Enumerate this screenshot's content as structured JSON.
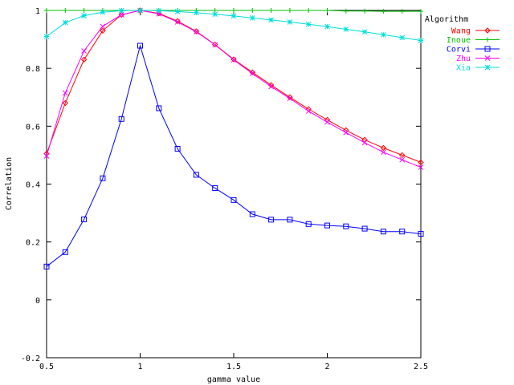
{
  "chart_data": {
    "type": "line",
    "xlabel": "gamma value",
    "ylabel": "Correlation",
    "xlim": [
      0.5,
      2.5
    ],
    "ylim": [
      -0.2,
      1.0
    ],
    "grid": false,
    "x_ticks": [
      {
        "value": 0.5,
        "label": "0.5"
      },
      {
        "value": 1.0,
        "label": "1"
      },
      {
        "value": 1.5,
        "label": "1.5"
      },
      {
        "value": 2.0,
        "label": "2"
      },
      {
        "value": 2.5,
        "label": "2.5"
      }
    ],
    "y_ticks": [
      {
        "value": -0.2,
        "label": "-0.2"
      },
      {
        "value": 0.0,
        "label": "0"
      },
      {
        "value": 0.2,
        "label": "0.2"
      },
      {
        "value": 0.4,
        "label": "0.4"
      },
      {
        "value": 0.6,
        "label": "0.6"
      },
      {
        "value": 0.8,
        "label": "0.8"
      },
      {
        "value": 1.0,
        "label": "1"
      }
    ],
    "legend_title": "Algorithm",
    "legend_position": "top-right",
    "x": [
      0.5,
      0.6,
      0.7,
      0.8,
      0.9,
      1.0,
      1.1,
      1.2,
      1.3,
      1.4,
      1.5,
      1.6,
      1.7,
      1.8,
      1.9,
      2.0,
      2.1,
      2.2,
      2.3,
      2.4,
      2.5
    ],
    "series": [
      {
        "name": "Wang",
        "color": "#ff0000",
        "marker": "diamond",
        "values": [
          0.505,
          0.68,
          0.83,
          0.93,
          0.985,
          1.0,
          0.99,
          0.963,
          0.928,
          0.882,
          0.831,
          0.786,
          0.742,
          0.7,
          0.659,
          0.622,
          0.586,
          0.553,
          0.525,
          0.5,
          0.475
        ]
      },
      {
        "name": "Inoue",
        "color": "#00c000",
        "marker": "plus",
        "values": [
          1.0,
          1.0,
          1.0,
          1.0,
          1.0,
          1.0,
          1.0,
          1.0,
          1.0,
          1.0,
          1.0,
          1.0,
          1.0,
          1.0,
          1.0,
          1.0,
          0.998,
          0.998,
          0.997,
          0.997,
          0.997
        ]
      },
      {
        "name": "Corvi",
        "color": "#0000ff",
        "marker": "square",
        "values": [
          0.115,
          0.165,
          0.278,
          0.42,
          0.625,
          0.878,
          0.662,
          0.522,
          0.432,
          0.386,
          0.345,
          0.296,
          0.277,
          0.277,
          0.262,
          0.257,
          0.254,
          0.246,
          0.236,
          0.236,
          0.228
        ]
      },
      {
        "name": "Zhu",
        "color": "#ff00ff",
        "marker": "cross",
        "values": [
          0.497,
          0.715,
          0.86,
          0.945,
          0.985,
          1.0,
          0.988,
          0.96,
          0.926,
          0.881,
          0.829,
          0.782,
          0.737,
          0.696,
          0.652,
          0.614,
          0.578,
          0.543,
          0.51,
          0.484,
          0.458
        ]
      },
      {
        "name": "Xia",
        "color": "#00dddd",
        "marker": "star",
        "values": [
          0.91,
          0.958,
          0.982,
          0.994,
          0.999,
          1.0,
          0.999,
          0.996,
          0.992,
          0.987,
          0.981,
          0.974,
          0.967,
          0.96,
          0.952,
          0.944,
          0.935,
          0.926,
          0.916,
          0.906,
          0.896
        ]
      }
    ]
  }
}
